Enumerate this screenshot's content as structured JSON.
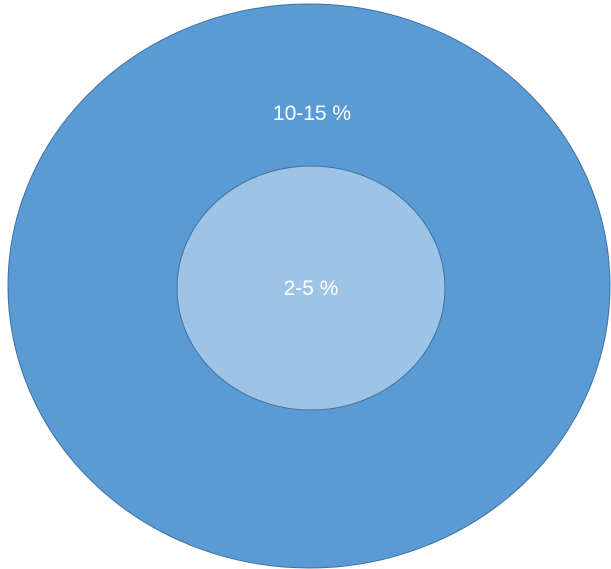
{
  "diagram": {
    "outer": {
      "label": "10-15 %",
      "fill_color": "#5b9bd5",
      "stroke_color": "#41719c"
    },
    "inner": {
      "label": "2-5 %",
      "fill_color": "#9dc3e6",
      "stroke_color": "#41719c"
    },
    "label_color": "#ffffff",
    "background_color": "#ffffff"
  }
}
